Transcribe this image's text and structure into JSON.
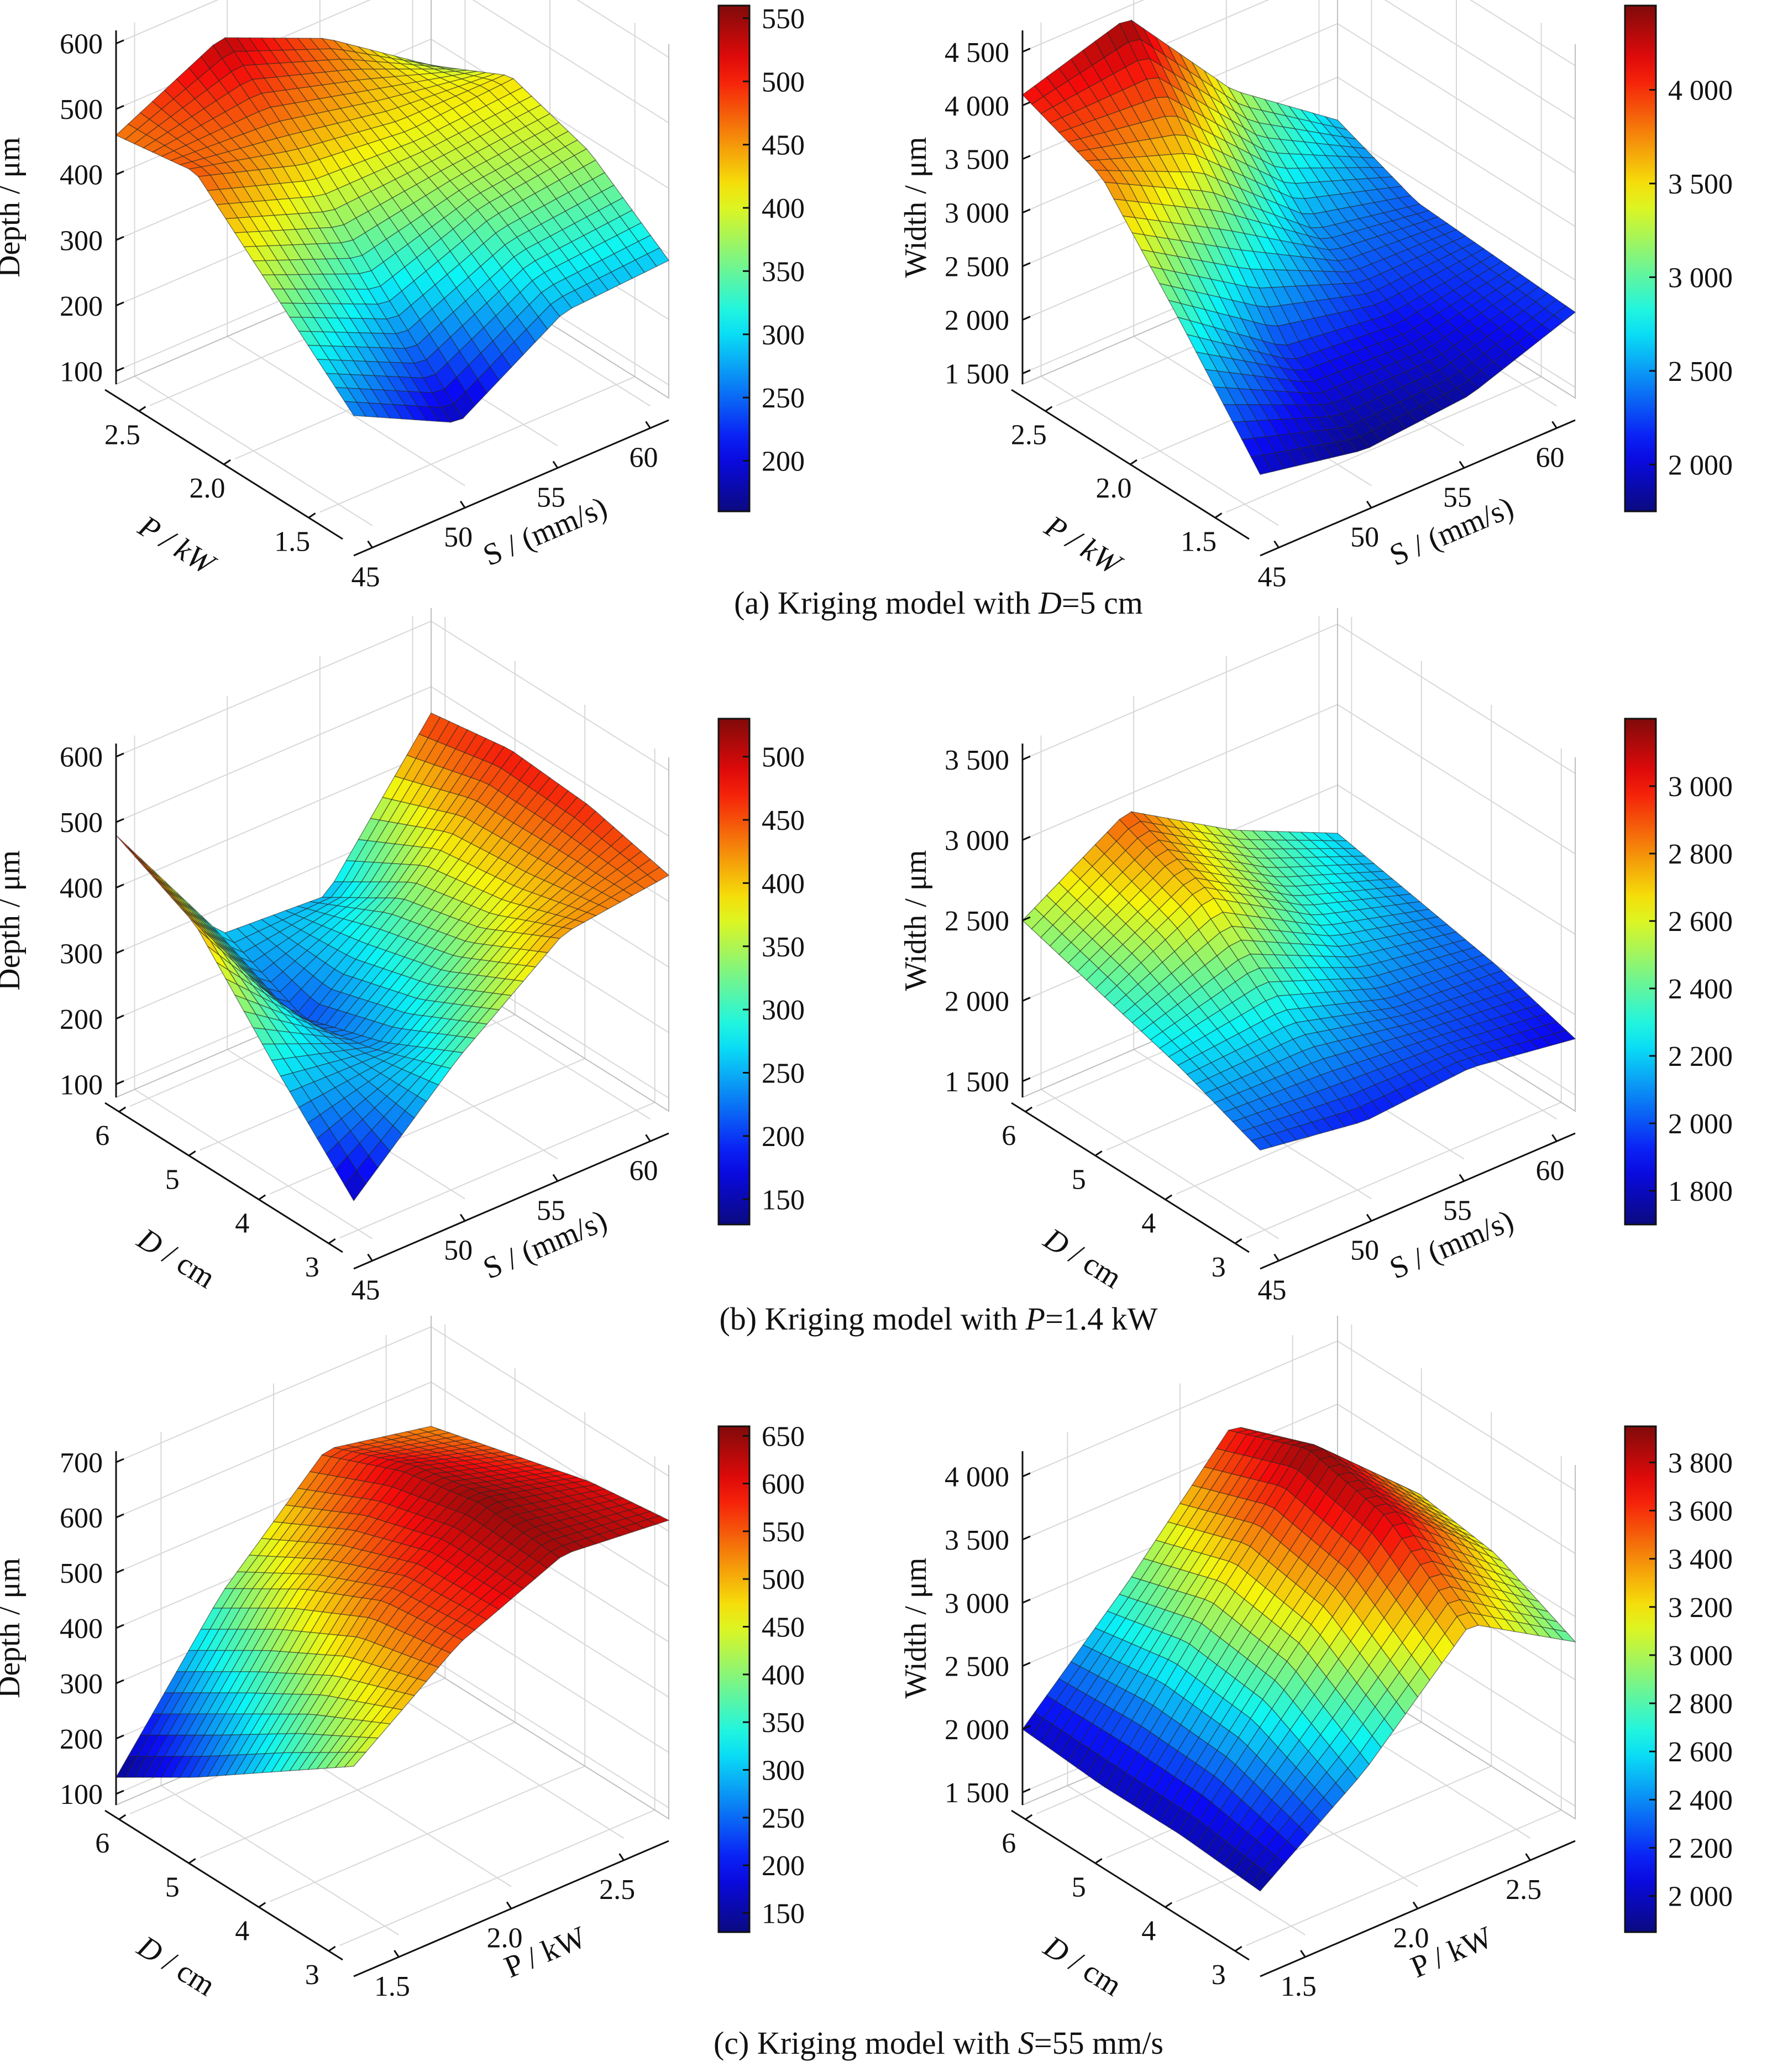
{
  "figure": {
    "captions": [
      {
        "parts": [
          {
            "t": "(a) Kriging model with ",
            "i": false
          },
          {
            "t": "D",
            "i": true
          },
          {
            "t": "=5 cm",
            "i": false
          }
        ]
      },
      {
        "parts": [
          {
            "t": "(b) Kriging model with ",
            "i": false
          },
          {
            "t": "P",
            "i": true
          },
          {
            "t": "=1.4 kW",
            "i": false
          }
        ]
      },
      {
        "parts": [
          {
            "t": "(c) Kriging model with ",
            "i": false
          },
          {
            "t": "S",
            "i": true
          },
          {
            "t": "=55 mm/s",
            "i": false
          }
        ]
      }
    ]
  },
  "chart_data": [
    {
      "type": "surface",
      "row": 0,
      "col": 0,
      "x_label": [
        {
          "t": "S",
          "i": false
        },
        {
          "t": " / (mm/s)",
          "i": false
        }
      ],
      "y_label": [
        {
          "t": "P",
          "i": true
        },
        {
          "t": " / kW",
          "i": true
        }
      ],
      "z_label": [
        {
          "t": "Depth / μm",
          "i": false
        }
      ],
      "x_ticks": [
        "45",
        "50",
        "55",
        "60"
      ],
      "x_tick_values": [
        45,
        50,
        55,
        60
      ],
      "x_range": [
        44,
        61
      ],
      "y_ticks": [
        "1.5",
        "2.0",
        "2.5"
      ],
      "y_tick_values": [
        1.5,
        2.0,
        2.5
      ],
      "y_range": [
        1.3,
        2.7
      ],
      "z_ticks": [
        "100",
        "200",
        "300",
        "400",
        "500",
        "600"
      ],
      "z_tick_values": [
        100,
        200,
        300,
        400,
        500,
        600
      ],
      "z_range": [
        80,
        620
      ],
      "colorbar": {
        "range": [
          160,
          560
        ],
        "ticks": [
          "200",
          "250",
          "300",
          "350",
          "400",
          "450",
          "500",
          "550"
        ],
        "tick_values": [
          200,
          250,
          300,
          350,
          400,
          450,
          500,
          550
        ]
      },
      "z_samples": [
        [
          260,
          180,
          280,
          290
        ],
        [
          370,
          300,
          360,
          380
        ],
        [
          480,
          430,
          410,
          420
        ],
        [
          460,
          540,
          470,
          360
        ]
      ]
    },
    {
      "type": "surface",
      "row": 0,
      "col": 1,
      "x_label": [
        {
          "t": "S",
          "i": false
        },
        {
          "t": " / (mm/s)",
          "i": false
        }
      ],
      "y_label": [
        {
          "t": "P",
          "i": true
        },
        {
          "t": " / kW",
          "i": true
        }
      ],
      "z_label": [
        {
          "t": "Width / μm",
          "i": false
        }
      ],
      "x_ticks": [
        "45",
        "50",
        "55",
        "60"
      ],
      "x_tick_values": [
        45,
        50,
        55,
        60
      ],
      "x_range": [
        44,
        61
      ],
      "y_ticks": [
        "1.5",
        "2.0",
        "2.5"
      ],
      "y_tick_values": [
        1.5,
        2.0,
        2.5
      ],
      "y_range": [
        1.3,
        2.7
      ],
      "z_ticks": [
        "1 500",
        "2 000",
        "2 500",
        "3 000",
        "3 500",
        "4 000",
        "4 500"
      ],
      "z_tick_values": [
        1500,
        2000,
        2500,
        3000,
        3500,
        4000,
        4500
      ],
      "z_range": [
        1400,
        4700
      ],
      "colorbar": {
        "range": [
          1750,
          4450
        ],
        "ticks": [
          "2 000",
          "2 500",
          "3 000",
          "3 500",
          "4 000"
        ],
        "tick_values": [
          2000,
          2500,
          3000,
          3500,
          4000
        ]
      },
      "z_samples": [
        [
          1950,
          1760,
          1850,
          2200
        ],
        [
          2900,
          2200,
          2100,
          2250
        ],
        [
          3800,
          3300,
          2500,
          2300
        ],
        [
          4100,
          4400,
          3300,
          2600
        ]
      ]
    },
    {
      "type": "surface",
      "row": 1,
      "col": 0,
      "x_label": [
        {
          "t": "S",
          "i": false
        },
        {
          "t": " / (mm/s)",
          "i": false
        }
      ],
      "y_label": [
        {
          "t": "D",
          "i": true
        },
        {
          "t": " / cm",
          "i": false
        }
      ],
      "z_label": [
        {
          "t": "Depth / μm",
          "i": false
        }
      ],
      "x_ticks": [
        "45",
        "50",
        "55",
        "60"
      ],
      "x_tick_values": [
        45,
        50,
        55,
        60
      ],
      "x_range": [
        44,
        61
      ],
      "y_ticks": [
        "3",
        "4",
        "5",
        "6"
      ],
      "y_tick_values": [
        3,
        4,
        5,
        6
      ],
      "y_range": [
        2.8,
        6.2
      ],
      "z_ticks": [
        "100",
        "200",
        "300",
        "400",
        "500",
        "600"
      ],
      "z_tick_values": [
        100,
        200,
        300,
        400,
        500,
        600
      ],
      "z_range": [
        80,
        620
      ],
      "colorbar": {
        "range": [
          130,
          530
        ],
        "ticks": [
          "150",
          "200",
          "250",
          "300",
          "350",
          "400",
          "450",
          "500"
        ],
        "tick_values": [
          150,
          200,
          250,
          300,
          350,
          400,
          450,
          500
        ]
      },
      "z_samples": [
        [
          150,
          300,
          420,
          440
        ],
        [
          280,
          240,
          360,
          470
        ],
        [
          420,
          200,
          330,
          480
        ],
        [
          480,
          260,
          250,
          460
        ]
      ]
    },
    {
      "type": "surface",
      "row": 1,
      "col": 1,
      "x_label": [
        {
          "t": "S",
          "i": false
        },
        {
          "t": " / (mm/s)",
          "i": false
        }
      ],
      "y_label": [
        {
          "t": "D",
          "i": true
        },
        {
          "t": " / cm",
          "i": false
        }
      ],
      "z_label": [
        {
          "t": "Width / μm",
          "i": false
        }
      ],
      "x_ticks": [
        "45",
        "50",
        "55",
        "60"
      ],
      "x_tick_values": [
        45,
        50,
        55,
        60
      ],
      "x_range": [
        44,
        61
      ],
      "y_ticks": [
        "3",
        "4",
        "5",
        "6"
      ],
      "y_tick_values": [
        3,
        4,
        5,
        6
      ],
      "y_range": [
        2.8,
        6.2
      ],
      "z_ticks": [
        "1 500",
        "2 000",
        "2 500",
        "3 000",
        "3 500"
      ],
      "z_tick_values": [
        1500,
        2000,
        2500,
        3000,
        3500
      ],
      "z_range": [
        1400,
        3600
      ],
      "colorbar": {
        "range": [
          1700,
          3200
        ],
        "ticks": [
          "1 800",
          "2 000",
          "2 200",
          "2 400",
          "2 600",
          "2 800",
          "3 000"
        ],
        "tick_values": [
          1800,
          2000,
          2200,
          2400,
          2600,
          2800,
          3000
        ]
      },
      "z_samples": [
        [
          2000,
          1900,
          1950,
          1850
        ],
        [
          2200,
          2250,
          2050,
          2000
        ],
        [
          2350,
          2700,
          2300,
          2100
        ],
        [
          2500,
          2900,
          2500,
          2200
        ]
      ]
    },
    {
      "type": "surface",
      "row": 2,
      "col": 0,
      "x_label": [
        {
          "t": "P",
          "i": false
        },
        {
          "t": " / kW",
          "i": false
        }
      ],
      "y_label": [
        {
          "t": "D",
          "i": true
        },
        {
          "t": " / cm",
          "i": false
        }
      ],
      "z_label": [
        {
          "t": "Depth / μm",
          "i": false
        }
      ],
      "x_ticks": [
        "1.5",
        "2.0",
        "2.5"
      ],
      "x_tick_values": [
        1.5,
        2.0,
        2.5
      ],
      "x_range": [
        1.3,
        2.7
      ],
      "y_ticks": [
        "3",
        "4",
        "5",
        "6"
      ],
      "y_tick_values": [
        3,
        4,
        5,
        6
      ],
      "y_range": [
        2.8,
        6.2
      ],
      "z_ticks": [
        "100",
        "200",
        "300",
        "400",
        "500",
        "600",
        "700"
      ],
      "z_tick_values": [
        100,
        200,
        300,
        400,
        500,
        600,
        700
      ],
      "z_range": [
        80,
        720
      ],
      "colorbar": {
        "range": [
          130,
          660
        ],
        "ticks": [
          "150",
          "200",
          "250",
          "300",
          "350",
          "400",
          "450",
          "500",
          "550",
          "600",
          "650"
        ],
        "tick_values": [
          150,
          200,
          250,
          300,
          350,
          400,
          450,
          500,
          550,
          600,
          650
        ]
      },
      "z_samples": [
        [
          420,
          560,
          640,
          620
        ],
        [
          320,
          540,
          650,
          600
        ],
        [
          220,
          470,
          620,
          560
        ],
        [
          130,
          380,
          560,
          520
        ]
      ]
    },
    {
      "type": "surface",
      "row": 2,
      "col": 1,
      "x_label": [
        {
          "t": "P",
          "i": false
        },
        {
          "t": " / kW",
          "i": false
        }
      ],
      "y_label": [
        {
          "t": "D",
          "i": true
        },
        {
          "t": " / cm",
          "i": false
        }
      ],
      "z_label": [
        {
          "t": "Width / μm",
          "i": false
        }
      ],
      "x_ticks": [
        "1.5",
        "2.0",
        "2.5"
      ],
      "x_tick_values": [
        1.5,
        2.0,
        2.5
      ],
      "x_range": [
        1.3,
        2.7
      ],
      "y_ticks": [
        "3",
        "4",
        "5",
        "6"
      ],
      "y_tick_values": [
        3,
        4,
        5,
        6
      ],
      "y_range": [
        2.8,
        6.2
      ],
      "z_ticks": [
        "1 500",
        "2 000",
        "2 500",
        "3 000",
        "3 500",
        "4 000"
      ],
      "z_tick_values": [
        1500,
        2000,
        2500,
        3000,
        3500,
        4000
      ],
      "z_range": [
        1400,
        4200
      ],
      "colorbar": {
        "range": [
          1850,
          3950
        ],
        "ticks": [
          "2 000",
          "2 200",
          "2 400",
          "2 600",
          "2 800",
          "3 000",
          "3 200",
          "3 400",
          "3 600",
          "3 800"
        ],
        "tick_values": [
          2000,
          2200,
          2400,
          2600,
          2800,
          3000,
          3200,
          3400,
          3600,
          3800
        ]
      },
      "z_samples": [
        [
          1900,
          2500,
          3300,
          2800
        ],
        [
          1950,
          2900,
          3800,
          3100
        ],
        [
          1950,
          3000,
          3950,
          3200
        ],
        [
          2000,
          2800,
          3700,
          3000
        ]
      ]
    }
  ]
}
